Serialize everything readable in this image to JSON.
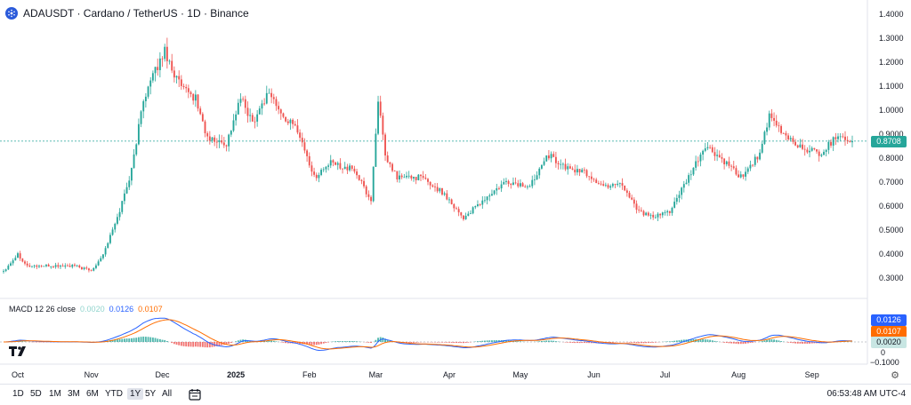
{
  "header": {
    "title": "ADAUSDT · Cardano / TetherUS · 1D · Binance"
  },
  "macd_legend": {
    "name": "MACD 12 26 close",
    "hist": "0.0020",
    "macd": "0.0126",
    "signal": "0.0107"
  },
  "price_axis": {
    "ticks": [
      "1.4000",
      "1.3000",
      "1.2000",
      "1.1000",
      "1.0000",
      "0.9000",
      "0.8000",
      "0.7000",
      "0.6000",
      "0.5000",
      "0.4000",
      "0.3000"
    ],
    "current_price": "0.8708"
  },
  "macd_axis": {
    "badges": [
      "0.0126",
      "0.0107",
      "0.0020"
    ],
    "ticks": [
      "0",
      "−0.1000"
    ]
  },
  "time_axis": {
    "ticks": [
      "Oct",
      "Nov",
      "Dec",
      "2025",
      "Feb",
      "Mar",
      "Apr",
      "May",
      "Jun",
      "Jul",
      "Aug",
      "Sep"
    ]
  },
  "bottom_bar": {
    "ranges": [
      "1D",
      "5D",
      "1M",
      "3M",
      "6M",
      "YTD",
      "1Y",
      "5Y",
      "All"
    ],
    "active_range": "1Y",
    "clock": "06:53:48 AM UTC-4"
  },
  "colors": {
    "up": "#26a69a",
    "down": "#ef5350",
    "macd_line": "#2962ff",
    "signal_line": "#ff6d00",
    "hist_up": "#26a69a",
    "hist_down": "#ef5350",
    "current_price_badge": "#26a69a",
    "macd_badge": "#2962ff",
    "signal_badge": "#ff6d00",
    "hist_badge": "#c8e6e3"
  },
  "chart_data": {
    "type": "candlestick",
    "symbol": "ADAUSDT",
    "interval": "1D",
    "y_range": [
      0.25,
      1.42
    ],
    "price_path": [
      [
        "Sep 25",
        0.33
      ],
      [
        "Oct 1",
        0.4
      ],
      [
        "Oct 5",
        0.35
      ],
      [
        "Oct 15",
        0.35
      ],
      [
        "Oct 25",
        0.35
      ],
      [
        "Nov 1",
        0.33
      ],
      [
        "Nov 6",
        0.4
      ],
      [
        "Nov 12",
        0.55
      ],
      [
        "Nov 18",
        0.75
      ],
      [
        "Nov 23",
        1.05
      ],
      [
        "Dec 2",
        1.25
      ],
      [
        "Dec 6",
        1.15
      ],
      [
        "Dec 10",
        1.08
      ],
      [
        "Dec 15",
        1.05
      ],
      [
        "Dec 20",
        0.88
      ],
      [
        "Dec 28",
        0.86
      ],
      [
        "Jan 3",
        1.05
      ],
      [
        "Jan 8",
        0.95
      ],
      [
        "Jan 15",
        1.08
      ],
      [
        "Jan 20",
        0.98
      ],
      [
        "Jan 27",
        0.92
      ],
      [
        "Feb 3",
        0.72
      ],
      [
        "Feb 10",
        0.78
      ],
      [
        "Feb 20",
        0.75
      ],
      [
        "Feb 27",
        0.62
      ],
      [
        "Mar 2",
        1.05
      ],
      [
        "Mar 5",
        0.8
      ],
      [
        "Mar 10",
        0.72
      ],
      [
        "Mar 20",
        0.72
      ],
      [
        "Mar 30",
        0.65
      ],
      [
        "Apr 7",
        0.55
      ],
      [
        "Apr 15",
        0.62
      ],
      [
        "Apr 25",
        0.7
      ],
      [
        "May 5",
        0.68
      ],
      [
        "May 12",
        0.82
      ],
      [
        "May 20",
        0.76
      ],
      [
        "May 28",
        0.74
      ],
      [
        "Jun 5",
        0.68
      ],
      [
        "Jun 12",
        0.7
      ],
      [
        "Jun 20",
        0.58
      ],
      [
        "Jun 26",
        0.55
      ],
      [
        "Jul 3",
        0.58
      ],
      [
        "Jul 10",
        0.7
      ],
      [
        "Jul 18",
        0.85
      ],
      [
        "Jul 24",
        0.8
      ],
      [
        "Aug 2",
        0.72
      ],
      [
        "Aug 10",
        0.82
      ],
      [
        "Aug 14",
        0.97
      ],
      [
        "Aug 20",
        0.9
      ],
      [
        "Aug 28",
        0.84
      ],
      [
        "Sep 5",
        0.82
      ],
      [
        "Sep 12",
        0.9
      ],
      [
        "Sep 18",
        0.87
      ]
    ],
    "current_price": 0.8708,
    "macd": {
      "hist": 0.002,
      "macd": 0.0126,
      "signal": 0.0107
    }
  }
}
